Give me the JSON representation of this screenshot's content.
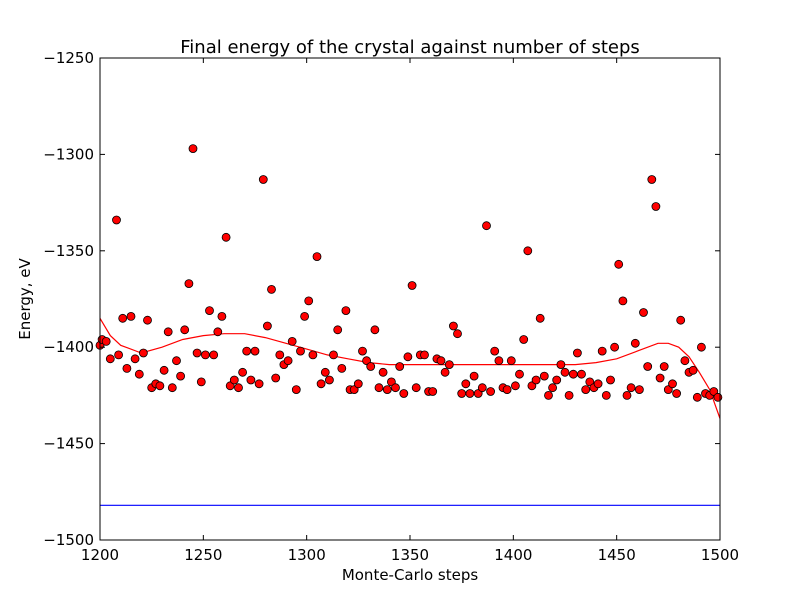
{
  "chart_data": {
    "type": "scatter",
    "title": "Final energy of the crystal against number of steps",
    "xlabel": "Monte-Carlo steps",
    "ylabel": "Energy, eV",
    "xlim": [
      1200,
      1500
    ],
    "ylim": [
      -1500,
      -1250
    ],
    "xticks": [
      1200,
      1250,
      1300,
      1350,
      1400,
      1450,
      1500
    ],
    "yticks": [
      -1250,
      -1300,
      -1350,
      -1400,
      -1450,
      -1500
    ],
    "grid": false,
    "colors": {
      "points": "#ff0000",
      "fit": "#ff0000",
      "reference": "#0000ff"
    },
    "points": [
      [
        1200,
        -1399
      ],
      [
        1201,
        -1396
      ],
      [
        1203,
        -1397
      ],
      [
        1205,
        -1406
      ],
      [
        1208,
        -1334
      ],
      [
        1209,
        -1404
      ],
      [
        1211,
        -1385
      ],
      [
        1213,
        -1411
      ],
      [
        1215,
        -1384
      ],
      [
        1217,
        -1406
      ],
      [
        1219,
        -1414
      ],
      [
        1221,
        -1403
      ],
      [
        1223,
        -1386
      ],
      [
        1225,
        -1421
      ],
      [
        1227,
        -1419
      ],
      [
        1229,
        -1420
      ],
      [
        1231,
        -1412
      ],
      [
        1233,
        -1392
      ],
      [
        1235,
        -1421
      ],
      [
        1237,
        -1407
      ],
      [
        1239,
        -1415
      ],
      [
        1241,
        -1391
      ],
      [
        1243,
        -1367
      ],
      [
        1245,
        -1297
      ],
      [
        1247,
        -1403
      ],
      [
        1249,
        -1418
      ],
      [
        1251,
        -1404
      ],
      [
        1253,
        -1381
      ],
      [
        1255,
        -1404
      ],
      [
        1257,
        -1392
      ],
      [
        1259,
        -1384
      ],
      [
        1261,
        -1343
      ],
      [
        1263,
        -1420
      ],
      [
        1265,
        -1417
      ],
      [
        1267,
        -1421
      ],
      [
        1269,
        -1413
      ],
      [
        1271,
        -1402
      ],
      [
        1273,
        -1417
      ],
      [
        1275,
        -1402
      ],
      [
        1277,
        -1419
      ],
      [
        1279,
        -1313
      ],
      [
        1281,
        -1389
      ],
      [
        1283,
        -1370
      ],
      [
        1285,
        -1416
      ],
      [
        1287,
        -1404
      ],
      [
        1289,
        -1409
      ],
      [
        1291,
        -1407
      ],
      [
        1293,
        -1397
      ],
      [
        1295,
        -1422
      ],
      [
        1297,
        -1402
      ],
      [
        1299,
        -1384
      ],
      [
        1301,
        -1376
      ],
      [
        1303,
        -1404
      ],
      [
        1305,
        -1353
      ],
      [
        1307,
        -1419
      ],
      [
        1309,
        -1413
      ],
      [
        1311,
        -1417
      ],
      [
        1313,
        -1404
      ],
      [
        1315,
        -1391
      ],
      [
        1317,
        -1411
      ],
      [
        1319,
        -1381
      ],
      [
        1321,
        -1422
      ],
      [
        1323,
        -1422
      ],
      [
        1325,
        -1419
      ],
      [
        1327,
        -1402
      ],
      [
        1329,
        -1407
      ],
      [
        1331,
        -1410
      ],
      [
        1333,
        -1391
      ],
      [
        1335,
        -1421
      ],
      [
        1337,
        -1413
      ],
      [
        1339,
        -1422
      ],
      [
        1341,
        -1418
      ],
      [
        1343,
        -1421
      ],
      [
        1345,
        -1410
      ],
      [
        1347,
        -1424
      ],
      [
        1349,
        -1405
      ],
      [
        1351,
        -1368
      ],
      [
        1353,
        -1421
      ],
      [
        1355,
        -1404
      ],
      [
        1357,
        -1404
      ],
      [
        1359,
        -1423
      ],
      [
        1361,
        -1423
      ],
      [
        1363,
        -1406
      ],
      [
        1365,
        -1407
      ],
      [
        1367,
        -1413
      ],
      [
        1369,
        -1409
      ],
      [
        1371,
        -1389
      ],
      [
        1373,
        -1393
      ],
      [
        1375,
        -1424
      ],
      [
        1377,
        -1419
      ],
      [
        1379,
        -1424
      ],
      [
        1381,
        -1415
      ],
      [
        1383,
        -1424
      ],
      [
        1385,
        -1421
      ],
      [
        1387,
        -1337
      ],
      [
        1389,
        -1423
      ],
      [
        1391,
        -1402
      ],
      [
        1393,
        -1407
      ],
      [
        1395,
        -1421
      ],
      [
        1397,
        -1422
      ],
      [
        1399,
        -1407
      ],
      [
        1401,
        -1420
      ],
      [
        1403,
        -1414
      ],
      [
        1405,
        -1396
      ],
      [
        1407,
        -1350
      ],
      [
        1409,
        -1420
      ],
      [
        1411,
        -1417
      ],
      [
        1413,
        -1385
      ],
      [
        1415,
        -1415
      ],
      [
        1417,
        -1425
      ],
      [
        1419,
        -1421
      ],
      [
        1421,
        -1417
      ],
      [
        1423,
        -1409
      ],
      [
        1425,
        -1413
      ],
      [
        1427,
        -1425
      ],
      [
        1429,
        -1414
      ],
      [
        1431,
        -1403
      ],
      [
        1433,
        -1414
      ],
      [
        1435,
        -1422
      ],
      [
        1437,
        -1418
      ],
      [
        1439,
        -1421
      ],
      [
        1441,
        -1419
      ],
      [
        1443,
        -1402
      ],
      [
        1445,
        -1425
      ],
      [
        1447,
        -1417
      ],
      [
        1449,
        -1400
      ],
      [
        1451,
        -1357
      ],
      [
        1453,
        -1376
      ],
      [
        1455,
        -1425
      ],
      [
        1457,
        -1421
      ],
      [
        1459,
        -1398
      ],
      [
        1461,
        -1422
      ],
      [
        1463,
        -1382
      ],
      [
        1465,
        -1410
      ],
      [
        1467,
        -1313
      ],
      [
        1469,
        -1327
      ],
      [
        1471,
        -1416
      ],
      [
        1473,
        -1410
      ],
      [
        1475,
        -1422
      ],
      [
        1477,
        -1419
      ],
      [
        1479,
        -1424
      ],
      [
        1481,
        -1386
      ],
      [
        1483,
        -1407
      ],
      [
        1485,
        -1413
      ],
      [
        1487,
        -1412
      ],
      [
        1489,
        -1426
      ],
      [
        1491,
        -1400
      ],
      [
        1493,
        -1424
      ],
      [
        1495,
        -1425
      ],
      [
        1497,
        -1423
      ],
      [
        1499,
        -1426
      ]
    ],
    "fit_curve": [
      [
        1200,
        -1385
      ],
      [
        1205,
        -1394
      ],
      [
        1210,
        -1399
      ],
      [
        1220,
        -1403
      ],
      [
        1230,
        -1400
      ],
      [
        1240,
        -1396
      ],
      [
        1250,
        -1394
      ],
      [
        1260,
        -1393
      ],
      [
        1270,
        -1393
      ],
      [
        1280,
        -1395
      ],
      [
        1290,
        -1398
      ],
      [
        1300,
        -1401
      ],
      [
        1310,
        -1404
      ],
      [
        1320,
        -1406
      ],
      [
        1330,
        -1408
      ],
      [
        1340,
        -1409
      ],
      [
        1350,
        -1409
      ],
      [
        1360,
        -1409
      ],
      [
        1370,
        -1409
      ],
      [
        1380,
        -1409
      ],
      [
        1390,
        -1409
      ],
      [
        1400,
        -1409
      ],
      [
        1410,
        -1409
      ],
      [
        1420,
        -1409
      ],
      [
        1430,
        -1409
      ],
      [
        1440,
        -1408
      ],
      [
        1450,
        -1406
      ],
      [
        1460,
        -1402
      ],
      [
        1470,
        -1398
      ],
      [
        1475,
        -1398
      ],
      [
        1480,
        -1400
      ],
      [
        1485,
        -1405
      ],
      [
        1490,
        -1413
      ],
      [
        1495,
        -1422
      ],
      [
        1500,
        -1437
      ]
    ],
    "reference_line": -1482
  }
}
